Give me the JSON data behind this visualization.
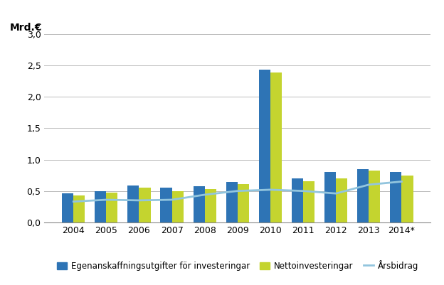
{
  "years": [
    "2004",
    "2005",
    "2006",
    "2007",
    "2008",
    "2009",
    "2010",
    "2011",
    "2012",
    "2013",
    "2014*"
  ],
  "egenanskaffning": [
    0.46,
    0.5,
    0.59,
    0.55,
    0.58,
    0.64,
    2.43,
    0.7,
    0.8,
    0.85,
    0.8
  ],
  "nettoinvesteringar": [
    0.43,
    0.47,
    0.55,
    0.5,
    0.53,
    0.61,
    2.39,
    0.66,
    0.7,
    0.82,
    0.75
  ],
  "arsbidrag": [
    0.33,
    0.36,
    0.35,
    0.36,
    0.44,
    0.5,
    0.52,
    0.5,
    0.46,
    0.6,
    0.65
  ],
  "bar_color_blue": "#2E74B5",
  "bar_color_green": "#C4D42F",
  "line_color": "#92C5DE",
  "ylabel": "Mrd.€",
  "ylim": [
    0,
    3.0
  ],
  "yticks": [
    0.0,
    0.5,
    1.0,
    1.5,
    2.0,
    2.5,
    3.0
  ],
  "legend_egenanskaffning": "Egenanskaffningsutgifter för investeringar",
  "legend_netto": "Nettoinvesteringar",
  "legend_arsbidrag": "Årsbidrag",
  "background_color": "#FFFFFF",
  "grid_color": "#BBBBBB"
}
